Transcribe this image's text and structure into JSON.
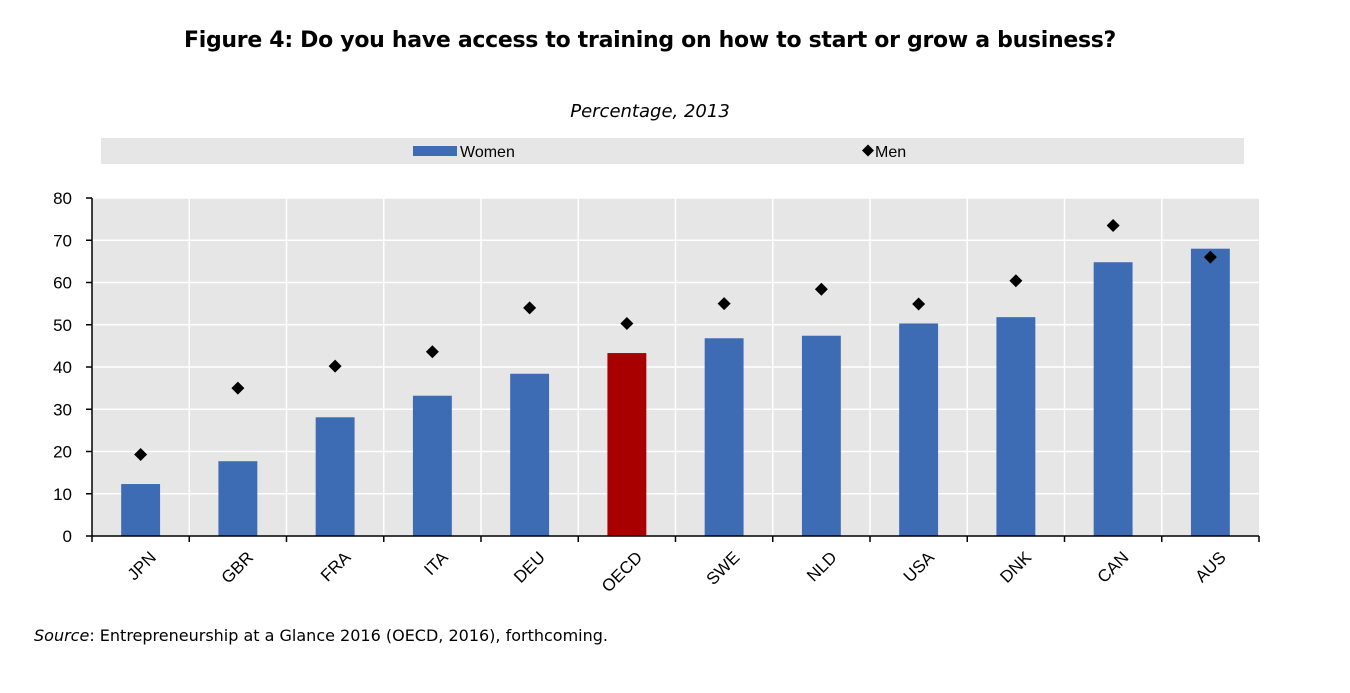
{
  "figure": {
    "title": "Figure 4: Do you have access to training on how to start or grow a business?",
    "subtitle": "Percentage, 2013",
    "source_label": "Source",
    "source_text": ": Entrepreneurship at a Glance 2016 (OECD, 2016), forthcoming."
  },
  "colors": {
    "women_bar": "#3d6cb5",
    "highlight_bar": "#a80000",
    "men_marker": "#000000",
    "plot_background": "#e6e6e6",
    "gridline": "#ffffff"
  },
  "chart_data": {
    "type": "bar",
    "categories": [
      "JPN",
      "GBR",
      "FRA",
      "ITA",
      "DEU",
      "OECD",
      "SWE",
      "NLD",
      "USA",
      "DNK",
      "CAN",
      "AUS"
    ],
    "highlight_category": "OECD",
    "series": [
      {
        "name": "Women",
        "type": "bar",
        "values": [
          12.3,
          17.7,
          28.1,
          33.2,
          38.4,
          43.3,
          46.8,
          47.4,
          50.3,
          51.8,
          64.8,
          68.0
        ]
      },
      {
        "name": "Men",
        "type": "marker",
        "values": [
          19.3,
          35.0,
          40.2,
          43.6,
          54.0,
          50.3,
          55.0,
          58.4,
          54.9,
          60.4,
          73.5,
          66.0
        ]
      }
    ],
    "yticks": [
      "0",
      "10",
      "20",
      "30",
      "40",
      "50",
      "60",
      "70",
      "80"
    ],
    "ylim": [
      0,
      80
    ],
    "xlabel": "",
    "ylabel": "",
    "grid": true,
    "legend_position": "top"
  }
}
